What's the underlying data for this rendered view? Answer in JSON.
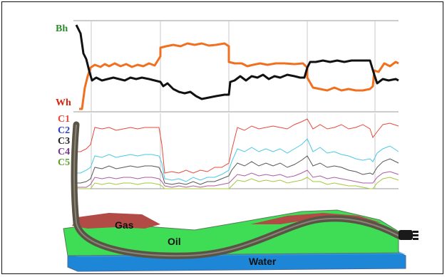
{
  "panel_top": {
    "labels": {
      "bh": "Bh",
      "wh": "Wh"
    },
    "colors": {
      "bh": "#2e8b2e",
      "wh": "#d9230f",
      "orange_curve": "#f07020",
      "black_curve": "#111111"
    }
  },
  "panel_mid": {
    "labels": [
      "C1",
      "C2",
      "C3",
      "C4",
      "C5"
    ],
    "colors": {
      "C1": "#e8483a",
      "C2": "#2a3fc8",
      "C3": "#222222",
      "C4": "#7a3a8a",
      "C5": "#5aa02a"
    },
    "line_colors": [
      "#e8483a",
      "#48c8e6",
      "#555555",
      "#b05aa0",
      "#a6c83a"
    ]
  },
  "panel_bottom": {
    "layers": {
      "gas": "Gas",
      "oil": "Oil",
      "water": "Water"
    },
    "colors": {
      "gas": "#b24a46",
      "oil": "#3fdc55",
      "water": "#1e86d6",
      "well": "#5a5446"
    }
  }
}
